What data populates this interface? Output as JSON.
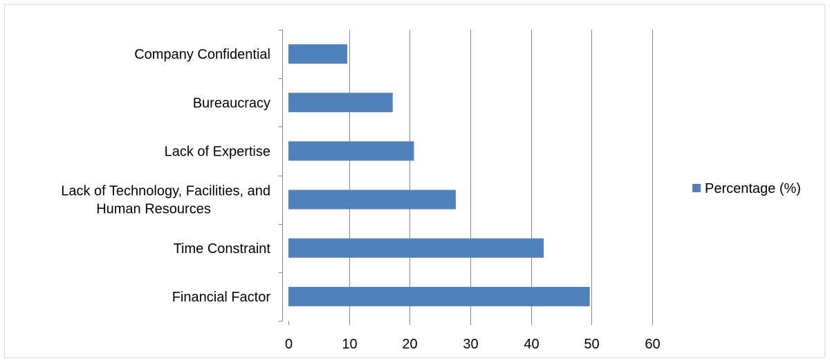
{
  "chart_data": {
    "type": "bar",
    "orientation": "horizontal",
    "title": "",
    "xlabel": "",
    "ylabel": "",
    "categories": [
      [
        "Financial Factor"
      ],
      [
        "Time Constraint"
      ],
      [
        "Lack of Technology, Facilities, and",
        "Human Resources"
      ],
      [
        "Lack of Expertise"
      ],
      [
        "Bureaucracy"
      ],
      [
        "Company Confidential"
      ]
    ],
    "series": [
      {
        "name": "Percentage (%)",
        "values": [
          49.7,
          42.1,
          27.6,
          20.7,
          17.2,
          9.7
        ],
        "color": "#4F81BD"
      }
    ],
    "xlim": [
      0,
      60
    ],
    "xticks": [
      "0",
      "10",
      "20",
      "30",
      "40",
      "50",
      "60"
    ],
    "grid": true,
    "legend_position": "right",
    "colors": {
      "bar": "#4F81BD",
      "gridline": "#868686",
      "axis": "#868686",
      "frame": "#D9D9D9"
    }
  }
}
